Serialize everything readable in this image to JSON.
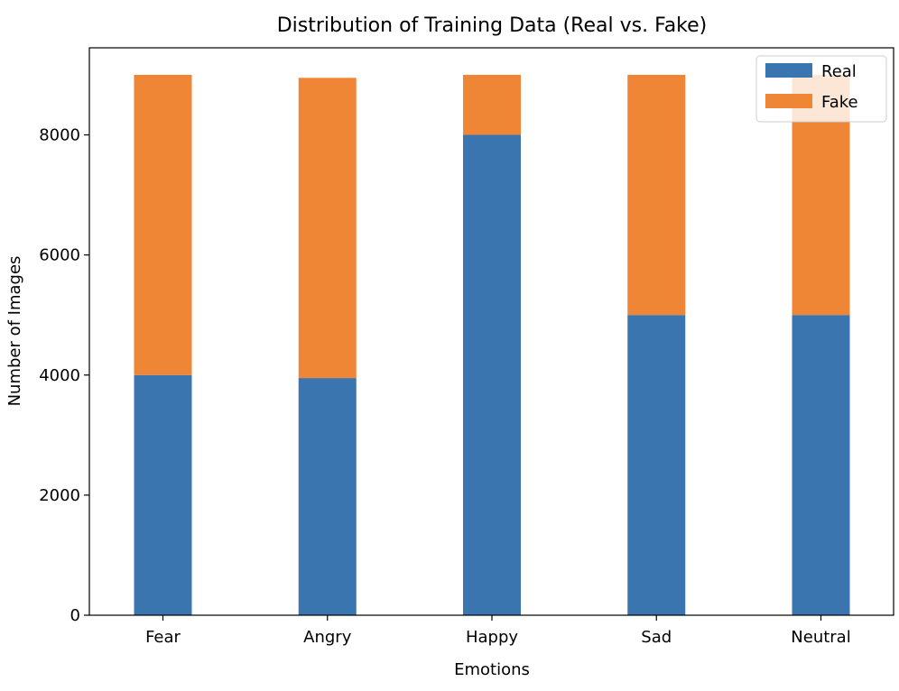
{
  "chart_data": {
    "type": "bar",
    "stacked": true,
    "title": "Distribution of Training Data (Real vs. Fake)",
    "xlabel": "Emotions",
    "ylabel": "Number of Images",
    "categories": [
      "Fear",
      "Angry",
      "Happy",
      "Sad",
      "Neutral"
    ],
    "series": [
      {
        "name": "Real",
        "color": "#3a75af",
        "values": [
          4000,
          3950,
          8000,
          5000,
          5000
        ]
      },
      {
        "name": "Fake",
        "color": "#ef8636",
        "values": [
          5000,
          5000,
          1000,
          4000,
          4000
        ]
      }
    ],
    "ylim": [
      0,
      9450
    ],
    "yticks": [
      0,
      2000,
      4000,
      6000,
      8000
    ],
    "grid": false,
    "legend_position": "top-right"
  }
}
